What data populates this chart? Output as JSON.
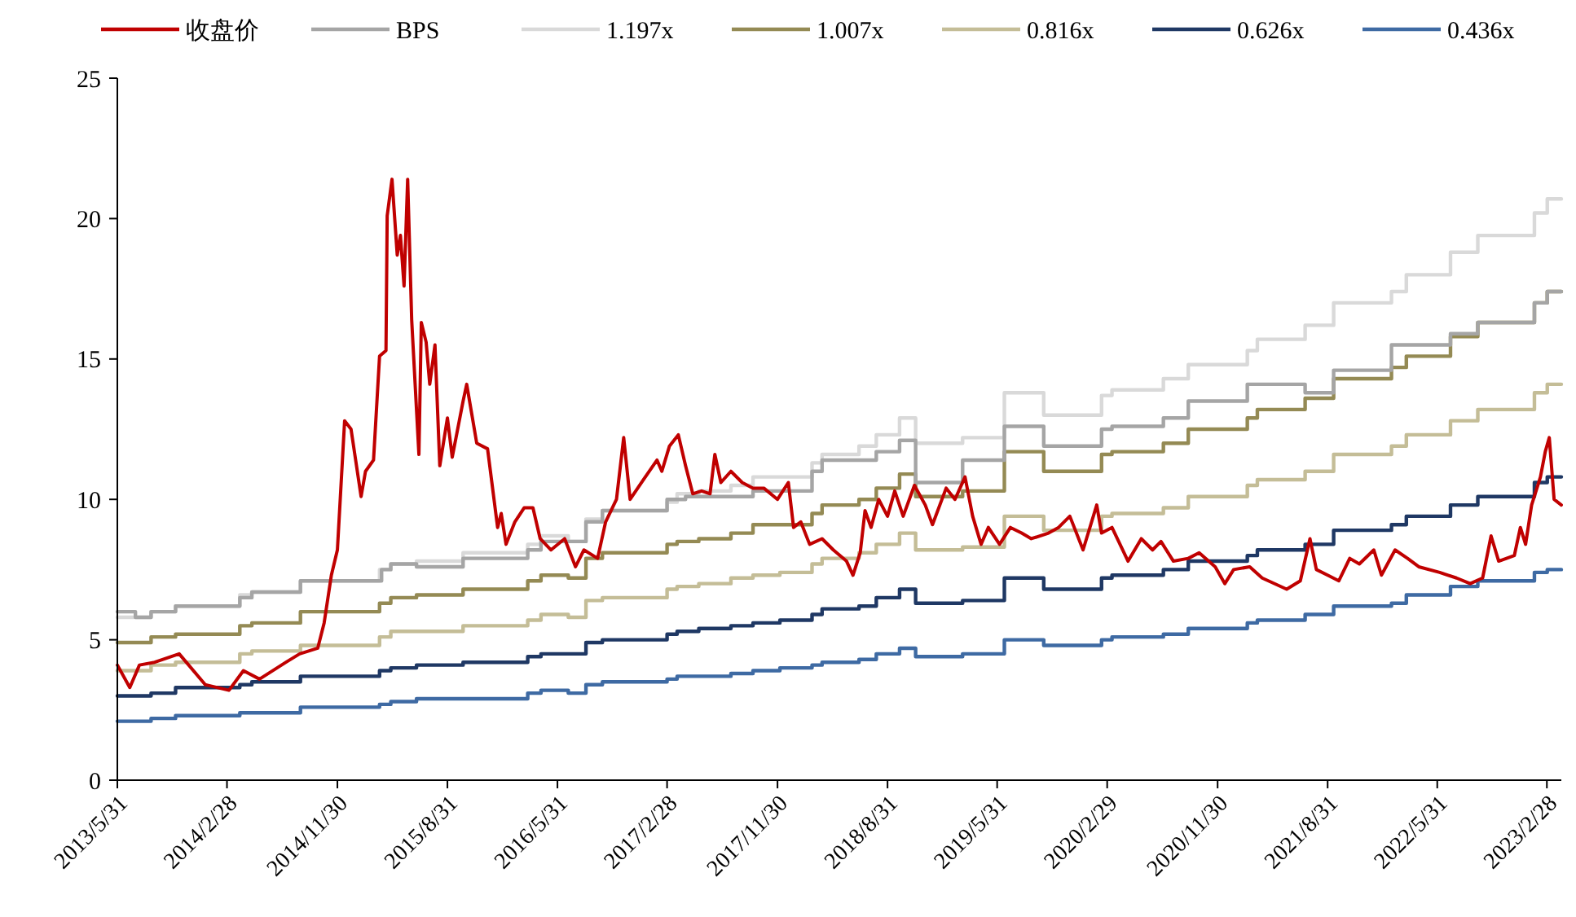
{
  "chart_data": {
    "type": "line",
    "legend": "top",
    "grid": false,
    "xlim": [
      "2013-05-31",
      "2023-04-05"
    ],
    "xticks": [
      {
        "value": "2013-05-31",
        "label": "2013/5/31"
      },
      {
        "value": "2014-02-28",
        "label": "2014/2/28"
      },
      {
        "value": "2014-11-30",
        "label": "2014/11/30"
      },
      {
        "value": "2015-08-31",
        "label": "2015/8/31"
      },
      {
        "value": "2016-05-31",
        "label": "2016/5/31"
      },
      {
        "value": "2017-02-28",
        "label": "2017/2/28"
      },
      {
        "value": "2017-11-30",
        "label": "2017/11/30"
      },
      {
        "value": "2018-08-31",
        "label": "2018/8/31"
      },
      {
        "value": "2019-05-31",
        "label": "2019/5/31"
      },
      {
        "value": "2020-02-29",
        "label": "2020/2/29"
      },
      {
        "value": "2020-11-30",
        "label": "2020/11/30"
      },
      {
        "value": "2021-08-31",
        "label": "2021/8/31"
      },
      {
        "value": "2022-05-31",
        "label": "2022/5/31"
      },
      {
        "value": "2023-02-28",
        "label": "2023/2/28"
      }
    ],
    "ylim": [
      0,
      25
    ],
    "yticks": [
      0,
      5,
      10,
      15,
      20,
      25
    ],
    "series": [
      {
        "name": "收盘价",
        "color": "#c00000",
        "type": "line",
        "x": [
          "2013-05-31",
          "2013-07-01",
          "2013-07-25",
          "2013-09-01",
          "2013-11-01",
          "2014-01-05",
          "2014-03-05",
          "2014-04-10",
          "2014-05-20",
          "2014-07-25",
          "2014-08-28",
          "2014-10-12",
          "2014-10-28",
          "2014-11-15",
          "2014-11-30",
          "2014-12-18",
          "2015-01-03",
          "2015-01-28",
          "2015-02-08",
          "2015-02-28",
          "2015-03-15",
          "2015-03-31",
          "2015-04-03",
          "2015-04-15",
          "2015-04-28",
          "2015-05-06",
          "2015-05-15",
          "2015-05-24",
          "2015-06-03",
          "2015-06-21",
          "2015-06-27",
          "2015-07-09",
          "2015-07-18",
          "2015-07-31",
          "2015-08-12",
          "2015-08-31",
          "2015-09-12",
          "2015-10-09",
          "2015-10-18",
          "2015-11-12",
          "2015-12-09",
          "2016-01-03",
          "2016-01-12",
          "2016-01-24",
          "2016-02-15",
          "2016-03-09",
          "2016-03-31",
          "2016-04-18",
          "2016-05-15",
          "2016-06-18",
          "2016-07-15",
          "2016-08-05",
          "2016-09-08",
          "2016-09-28",
          "2016-10-25",
          "2016-11-12",
          "2016-11-28",
          "2016-12-31",
          "2017-02-03",
          "2017-02-15",
          "2017-03-06",
          "2017-03-28",
          "2017-04-15",
          "2017-05-03",
          "2017-05-25",
          "2017-06-15",
          "2017-06-27",
          "2017-07-12",
          "2017-08-06",
          "2017-09-03",
          "2017-09-30",
          "2017-10-27",
          "2017-11-30",
          "2017-12-27",
          "2018-01-09",
          "2018-01-27",
          "2018-02-18",
          "2018-03-21",
          "2018-04-18",
          "2018-05-21",
          "2018-06-06",
          "2018-06-24",
          "2018-07-06",
          "2018-07-21",
          "2018-08-09",
          "2018-08-31",
          "2018-09-18",
          "2018-10-09",
          "2018-11-06",
          "2018-12-03",
          "2018-12-21",
          "2019-01-24",
          "2019-02-15",
          "2019-03-12",
          "2019-03-31",
          "2019-04-21",
          "2019-05-09",
          "2019-06-06",
          "2019-07-03",
          "2019-07-31",
          "2019-08-24",
          "2019-10-06",
          "2019-10-31",
          "2019-11-28",
          "2019-12-31",
          "2020-02-03",
          "2020-02-15",
          "2020-03-12",
          "2020-04-21",
          "2020-05-24",
          "2020-06-21",
          "2020-07-12",
          "2020-08-12",
          "2020-09-18",
          "2020-10-15",
          "2020-11-24",
          "2020-12-18",
          "2021-01-09",
          "2021-02-18",
          "2021-03-21",
          "2021-05-21",
          "2021-06-24",
          "2021-07-18",
          "2021-08-03",
          "2021-08-31",
          "2021-09-28",
          "2021-10-25",
          "2021-11-18",
          "2021-12-24",
          "2022-01-12",
          "2022-02-15",
          "2022-03-18",
          "2022-04-15",
          "2022-06-06",
          "2022-07-18",
          "2022-08-21",
          "2022-09-21",
          "2022-10-12",
          "2022-10-31",
          "2022-12-09",
          "2022-12-24",
          "2023-01-06",
          "2023-01-21",
          "2023-02-12",
          "2023-02-24",
          "2023-03-06",
          "2023-03-18",
          "2023-04-05"
        ],
        "values": [
          4.1,
          3.3,
          4.1,
          4.2,
          4.5,
          3.4,
          3.2,
          3.9,
          3.6,
          4.2,
          4.5,
          4.7,
          5.6,
          7.3,
          8.2,
          12.8,
          12.5,
          10.1,
          11.0,
          11.4,
          15.1,
          15.3,
          20.1,
          21.4,
          18.7,
          19.4,
          17.6,
          21.4,
          16.4,
          11.6,
          16.3,
          15.6,
          14.1,
          15.5,
          11.2,
          12.9,
          11.5,
          13.5,
          14.1,
          12.0,
          11.8,
          9.0,
          9.5,
          8.4,
          9.2,
          9.7,
          9.7,
          8.6,
          8.2,
          8.6,
          7.6,
          8.2,
          7.9,
          9.2,
          10.0,
          12.2,
          10.0,
          10.7,
          11.4,
          11.0,
          11.9,
          12.3,
          11.2,
          10.2,
          10.3,
          10.2,
          11.6,
          10.6,
          11.0,
          10.6,
          10.4,
          10.4,
          10.0,
          10.6,
          9.0,
          9.2,
          8.4,
          8.6,
          8.2,
          7.8,
          7.3,
          8.1,
          9.6,
          9.0,
          10.0,
          9.4,
          10.3,
          9.4,
          10.5,
          9.8,
          9.1,
          10.4,
          10.0,
          10.8,
          9.4,
          8.4,
          9.0,
          8.4,
          9.0,
          8.8,
          8.6,
          8.8,
          9.0,
          9.4,
          8.2,
          9.8,
          8.8,
          9.0,
          7.8,
          8.6,
          8.2,
          8.5,
          7.8,
          7.9,
          8.1,
          7.6,
          7.0,
          7.5,
          7.6,
          7.2,
          6.8,
          7.1,
          8.6,
          7.5,
          7.3,
          7.1,
          7.9,
          7.7,
          8.2,
          7.3,
          8.2,
          7.9,
          7.6,
          7.4,
          7.2,
          7.0,
          7.2,
          8.7,
          7.8,
          8.0,
          9.0,
          8.4,
          9.8,
          10.8,
          11.7,
          12.2,
          10.0,
          9.8
        ]
      },
      {
        "name": "BPS",
        "color": "#a5a5a5",
        "type": "step",
        "x": [
          "2013-05-31",
          "2013-07-15",
          "2013-08-23",
          "2013-10-23",
          "2014-04-01",
          "2014-05-01",
          "2014-08-30",
          "2015-03-20",
          "2015-04-12",
          "2015-06-15",
          "2015-10-09",
          "2016-03-18",
          "2016-04-20",
          "2016-08-10",
          "2016-09-20",
          "2017-02-28",
          "2017-04-15",
          "2017-09-30",
          "2018-02-24",
          "2018-03-21",
          "2018-08-03",
          "2018-09-30",
          "2018-11-09",
          "2019-03-06",
          "2019-06-18",
          "2019-09-24",
          "2020-02-15",
          "2020-03-12",
          "2020-07-18",
          "2020-09-18",
          "2021-02-12",
          "2021-07-06",
          "2021-09-15",
          "2022-02-06",
          "2022-07-03",
          "2022-09-09",
          "2023-01-28",
          "2023-03-01",
          "2023-04-05"
        ],
        "values": [
          6.0,
          5.8,
          6.0,
          6.2,
          6.5,
          6.7,
          7.1,
          7.5,
          7.7,
          7.6,
          7.9,
          8.2,
          8.5,
          9.2,
          9.6,
          10.0,
          10.1,
          10.3,
          11.0,
          11.4,
          11.7,
          12.1,
          10.6,
          11.4,
          12.6,
          11.9,
          12.5,
          12.6,
          12.9,
          13.5,
          14.1,
          13.8,
          14.6,
          15.5,
          15.9,
          16.3,
          17.0,
          17.4,
          17.4
        ]
      },
      {
        "name": "1.197x",
        "color": "#d9d9d9",
        "type": "step",
        "x": [
          "2013-05-31",
          "2013-08-23",
          "2013-10-23",
          "2014-04-01",
          "2014-05-01",
          "2014-08-30",
          "2015-03-15",
          "2015-04-12",
          "2015-06-15",
          "2015-10-09",
          "2016-03-18",
          "2016-04-20",
          "2016-06-27",
          "2016-08-10",
          "2016-09-20",
          "2017-02-28",
          "2017-03-25",
          "2017-05-18",
          "2017-08-06",
          "2017-09-30",
          "2017-12-06",
          "2018-02-24",
          "2018-03-21",
          "2018-06-21",
          "2018-08-03",
          "2018-09-30",
          "2018-11-09",
          "2019-03-06",
          "2019-06-18",
          "2019-09-24",
          "2020-02-15",
          "2020-03-12",
          "2020-07-18",
          "2020-09-18",
          "2021-02-12",
          "2021-03-09",
          "2021-07-06",
          "2021-09-15",
          "2022-02-06",
          "2022-03-15",
          "2022-07-03",
          "2022-09-09",
          "2023-01-28",
          "2023-03-01",
          "2023-04-05"
        ],
        "values": [
          5.8,
          6.0,
          6.2,
          6.6,
          6.7,
          7.1,
          7.5,
          7.7,
          7.8,
          8.1,
          8.4,
          8.7,
          8.5,
          9.3,
          9.6,
          9.9,
          10.2,
          10.3,
          10.5,
          10.8,
          10.8,
          11.3,
          11.6,
          11.9,
          12.3,
          12.9,
          12.0,
          12.2,
          13.8,
          13.0,
          13.7,
          13.9,
          14.3,
          14.8,
          15.3,
          15.7,
          16.2,
          17.0,
          17.4,
          18.0,
          18.8,
          19.4,
          20.2,
          20.7,
          20.7
        ]
      },
      {
        "name": "1.007x",
        "color": "#948a54",
        "type": "step",
        "x": [
          "2013-05-31",
          "2013-08-23",
          "2013-10-23",
          "2014-04-01",
          "2014-05-01",
          "2014-08-30",
          "2015-03-15",
          "2015-04-12",
          "2015-06-15",
          "2015-10-09",
          "2016-03-18",
          "2016-04-20",
          "2016-06-27",
          "2016-08-10",
          "2016-09-20",
          "2017-02-28",
          "2017-03-25",
          "2017-05-18",
          "2017-08-06",
          "2017-09-30",
          "2017-12-06",
          "2018-02-24",
          "2018-03-21",
          "2018-06-21",
          "2018-08-03",
          "2018-09-30",
          "2018-11-09",
          "2019-03-06",
          "2019-06-18",
          "2019-09-24",
          "2020-02-15",
          "2020-03-12",
          "2020-07-18",
          "2020-09-18",
          "2021-02-12",
          "2021-03-09",
          "2021-07-06",
          "2021-09-15",
          "2022-02-06",
          "2022-03-15",
          "2022-07-03",
          "2022-09-09",
          "2023-01-28",
          "2023-03-01",
          "2023-04-05"
        ],
        "values": [
          4.9,
          5.1,
          5.2,
          5.5,
          5.6,
          6.0,
          6.3,
          6.5,
          6.6,
          6.8,
          7.1,
          7.3,
          7.2,
          7.9,
          8.1,
          8.4,
          8.5,
          8.6,
          8.8,
          9.1,
          9.1,
          9.5,
          9.8,
          10.0,
          10.4,
          10.9,
          10.1,
          10.3,
          11.7,
          11.0,
          11.6,
          11.7,
          12.0,
          12.5,
          12.9,
          13.2,
          13.6,
          14.3,
          14.7,
          15.1,
          15.8,
          16.3,
          17.0,
          17.4,
          17.4
        ]
      },
      {
        "name": "0.816x",
        "color": "#c4bd97",
        "type": "step",
        "x": [
          "2013-05-31",
          "2013-08-23",
          "2013-10-23",
          "2014-04-01",
          "2014-05-01",
          "2014-08-30",
          "2015-03-15",
          "2015-04-12",
          "2015-06-15",
          "2015-10-09",
          "2016-03-18",
          "2016-04-20",
          "2016-06-27",
          "2016-08-10",
          "2016-09-20",
          "2017-02-28",
          "2017-03-25",
          "2017-05-18",
          "2017-08-06",
          "2017-09-30",
          "2017-12-06",
          "2018-02-24",
          "2018-03-21",
          "2018-06-21",
          "2018-08-03",
          "2018-09-30",
          "2018-11-09",
          "2019-03-06",
          "2019-06-18",
          "2019-09-24",
          "2020-02-15",
          "2020-03-12",
          "2020-07-18",
          "2020-09-18",
          "2021-02-12",
          "2021-03-09",
          "2021-07-06",
          "2021-09-15",
          "2022-02-06",
          "2022-03-15",
          "2022-07-03",
          "2022-09-09",
          "2023-01-28",
          "2023-03-01",
          "2023-04-05"
        ],
        "values": [
          3.9,
          4.1,
          4.2,
          4.5,
          4.6,
          4.8,
          5.1,
          5.3,
          5.3,
          5.5,
          5.7,
          5.9,
          5.8,
          6.4,
          6.5,
          6.8,
          6.9,
          7.0,
          7.2,
          7.3,
          7.4,
          7.7,
          7.9,
          8.1,
          8.4,
          8.8,
          8.2,
          8.3,
          9.4,
          8.9,
          9.4,
          9.5,
          9.7,
          10.1,
          10.5,
          10.7,
          11.0,
          11.6,
          11.9,
          12.3,
          12.8,
          13.2,
          13.8,
          14.1,
          14.1
        ]
      },
      {
        "name": "0.626x",
        "color": "#1f3864",
        "type": "step",
        "x": [
          "2013-05-31",
          "2013-08-23",
          "2013-10-23",
          "2014-04-01",
          "2014-05-01",
          "2014-08-30",
          "2015-03-15",
          "2015-04-12",
          "2015-06-15",
          "2015-10-09",
          "2016-03-18",
          "2016-04-20",
          "2016-06-27",
          "2016-08-10",
          "2016-09-20",
          "2017-02-28",
          "2017-03-25",
          "2017-05-18",
          "2017-08-06",
          "2017-09-30",
          "2017-12-06",
          "2018-02-24",
          "2018-03-21",
          "2018-06-21",
          "2018-08-03",
          "2018-09-30",
          "2018-11-09",
          "2019-03-06",
          "2019-06-18",
          "2019-09-24",
          "2020-02-15",
          "2020-03-12",
          "2020-07-18",
          "2020-09-18",
          "2021-02-12",
          "2021-03-09",
          "2021-07-06",
          "2021-09-15",
          "2022-02-06",
          "2022-03-15",
          "2022-07-03",
          "2022-09-09",
          "2023-01-28",
          "2023-03-01",
          "2023-04-05"
        ],
        "values": [
          3.0,
          3.1,
          3.3,
          3.4,
          3.5,
          3.7,
          3.9,
          4.0,
          4.1,
          4.2,
          4.4,
          4.5,
          4.5,
          4.9,
          5.0,
          5.2,
          5.3,
          5.4,
          5.5,
          5.6,
          5.7,
          5.9,
          6.1,
          6.2,
          6.5,
          6.8,
          6.3,
          6.4,
          7.2,
          6.8,
          7.2,
          7.3,
          7.5,
          7.8,
          8.0,
          8.2,
          8.4,
          8.9,
          9.1,
          9.4,
          9.8,
          10.1,
          10.6,
          10.8,
          10.8
        ]
      },
      {
        "name": "0.436x",
        "color": "#3e6aa3",
        "type": "step",
        "x": [
          "2013-05-31",
          "2013-08-23",
          "2013-10-23",
          "2014-04-01",
          "2014-05-01",
          "2014-08-30",
          "2015-03-15",
          "2015-04-12",
          "2015-06-15",
          "2015-10-09",
          "2016-03-18",
          "2016-04-20",
          "2016-06-27",
          "2016-08-10",
          "2016-09-20",
          "2017-02-28",
          "2017-03-25",
          "2017-05-18",
          "2017-08-06",
          "2017-09-30",
          "2017-12-06",
          "2018-02-24",
          "2018-03-21",
          "2018-06-21",
          "2018-08-03",
          "2018-09-30",
          "2018-11-09",
          "2019-03-06",
          "2019-06-18",
          "2019-09-24",
          "2020-02-15",
          "2020-03-12",
          "2020-07-18",
          "2020-09-18",
          "2021-02-12",
          "2021-03-09",
          "2021-07-06",
          "2021-09-15",
          "2022-02-06",
          "2022-03-15",
          "2022-07-03",
          "2022-09-09",
          "2023-01-28",
          "2023-03-01",
          "2023-04-05"
        ],
        "values": [
          2.1,
          2.2,
          2.3,
          2.4,
          2.4,
          2.6,
          2.7,
          2.8,
          2.9,
          2.9,
          3.1,
          3.2,
          3.1,
          3.4,
          3.5,
          3.6,
          3.7,
          3.7,
          3.8,
          3.9,
          4.0,
          4.1,
          4.2,
          4.3,
          4.5,
          4.7,
          4.4,
          4.5,
          5.0,
          4.8,
          5.0,
          5.1,
          5.2,
          5.4,
          5.6,
          5.7,
          5.9,
          6.2,
          6.3,
          6.6,
          6.9,
          7.1,
          7.4,
          7.5,
          7.5
        ]
      }
    ]
  }
}
